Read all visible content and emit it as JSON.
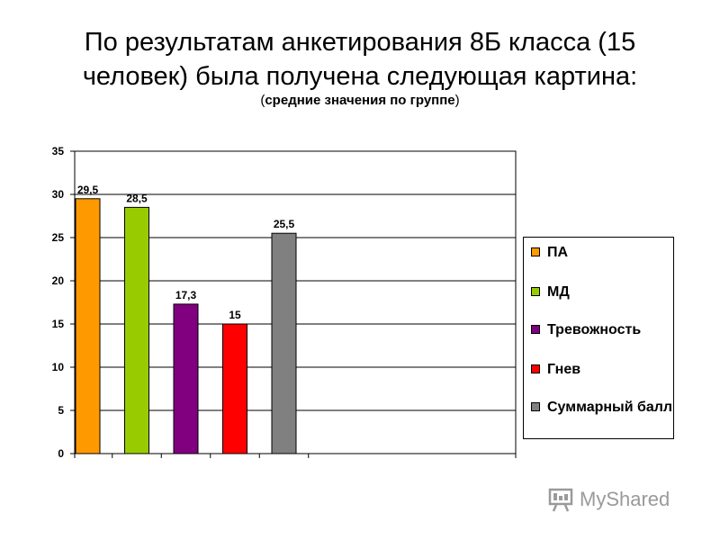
{
  "header": {
    "title_line1": "По результатам анкетирования 8Б класса (15",
    "title_line2": "человек) была получена следующая картина:",
    "subtitle_open": "(",
    "subtitle_text": "средние значения по группе",
    "subtitle_close": ")"
  },
  "chart_data": {
    "type": "bar",
    "categories": [
      "ПА",
      "МД",
      "Тревожность",
      "Гнев",
      "Суммарный балл"
    ],
    "values": [
      29.5,
      28.5,
      17.3,
      15,
      25.5
    ],
    "data_labels": [
      "29,5",
      "28,5",
      "17,3",
      "15",
      "25,5"
    ],
    "colors": [
      "#FF9900",
      "#99CC00",
      "#800080",
      "#FF0000",
      "#808080"
    ],
    "ylim": [
      0,
      35
    ],
    "yticks": [
      0,
      5,
      10,
      15,
      20,
      25,
      30,
      35
    ],
    "grid": true,
    "legend_position": "right"
  },
  "legend": {
    "items": [
      {
        "label": "ПА",
        "color": "#FF9900"
      },
      {
        "label": "МД",
        "color": "#99CC00"
      },
      {
        "label": "Тревожность",
        "color": "#800080"
      },
      {
        "label": "Гнев",
        "color": "#FF0000"
      },
      {
        "label": "Суммарный балл",
        "color": "#808080"
      }
    ]
  },
  "watermark": {
    "text": "MyShared",
    "icon": "presentation-board-icon"
  }
}
